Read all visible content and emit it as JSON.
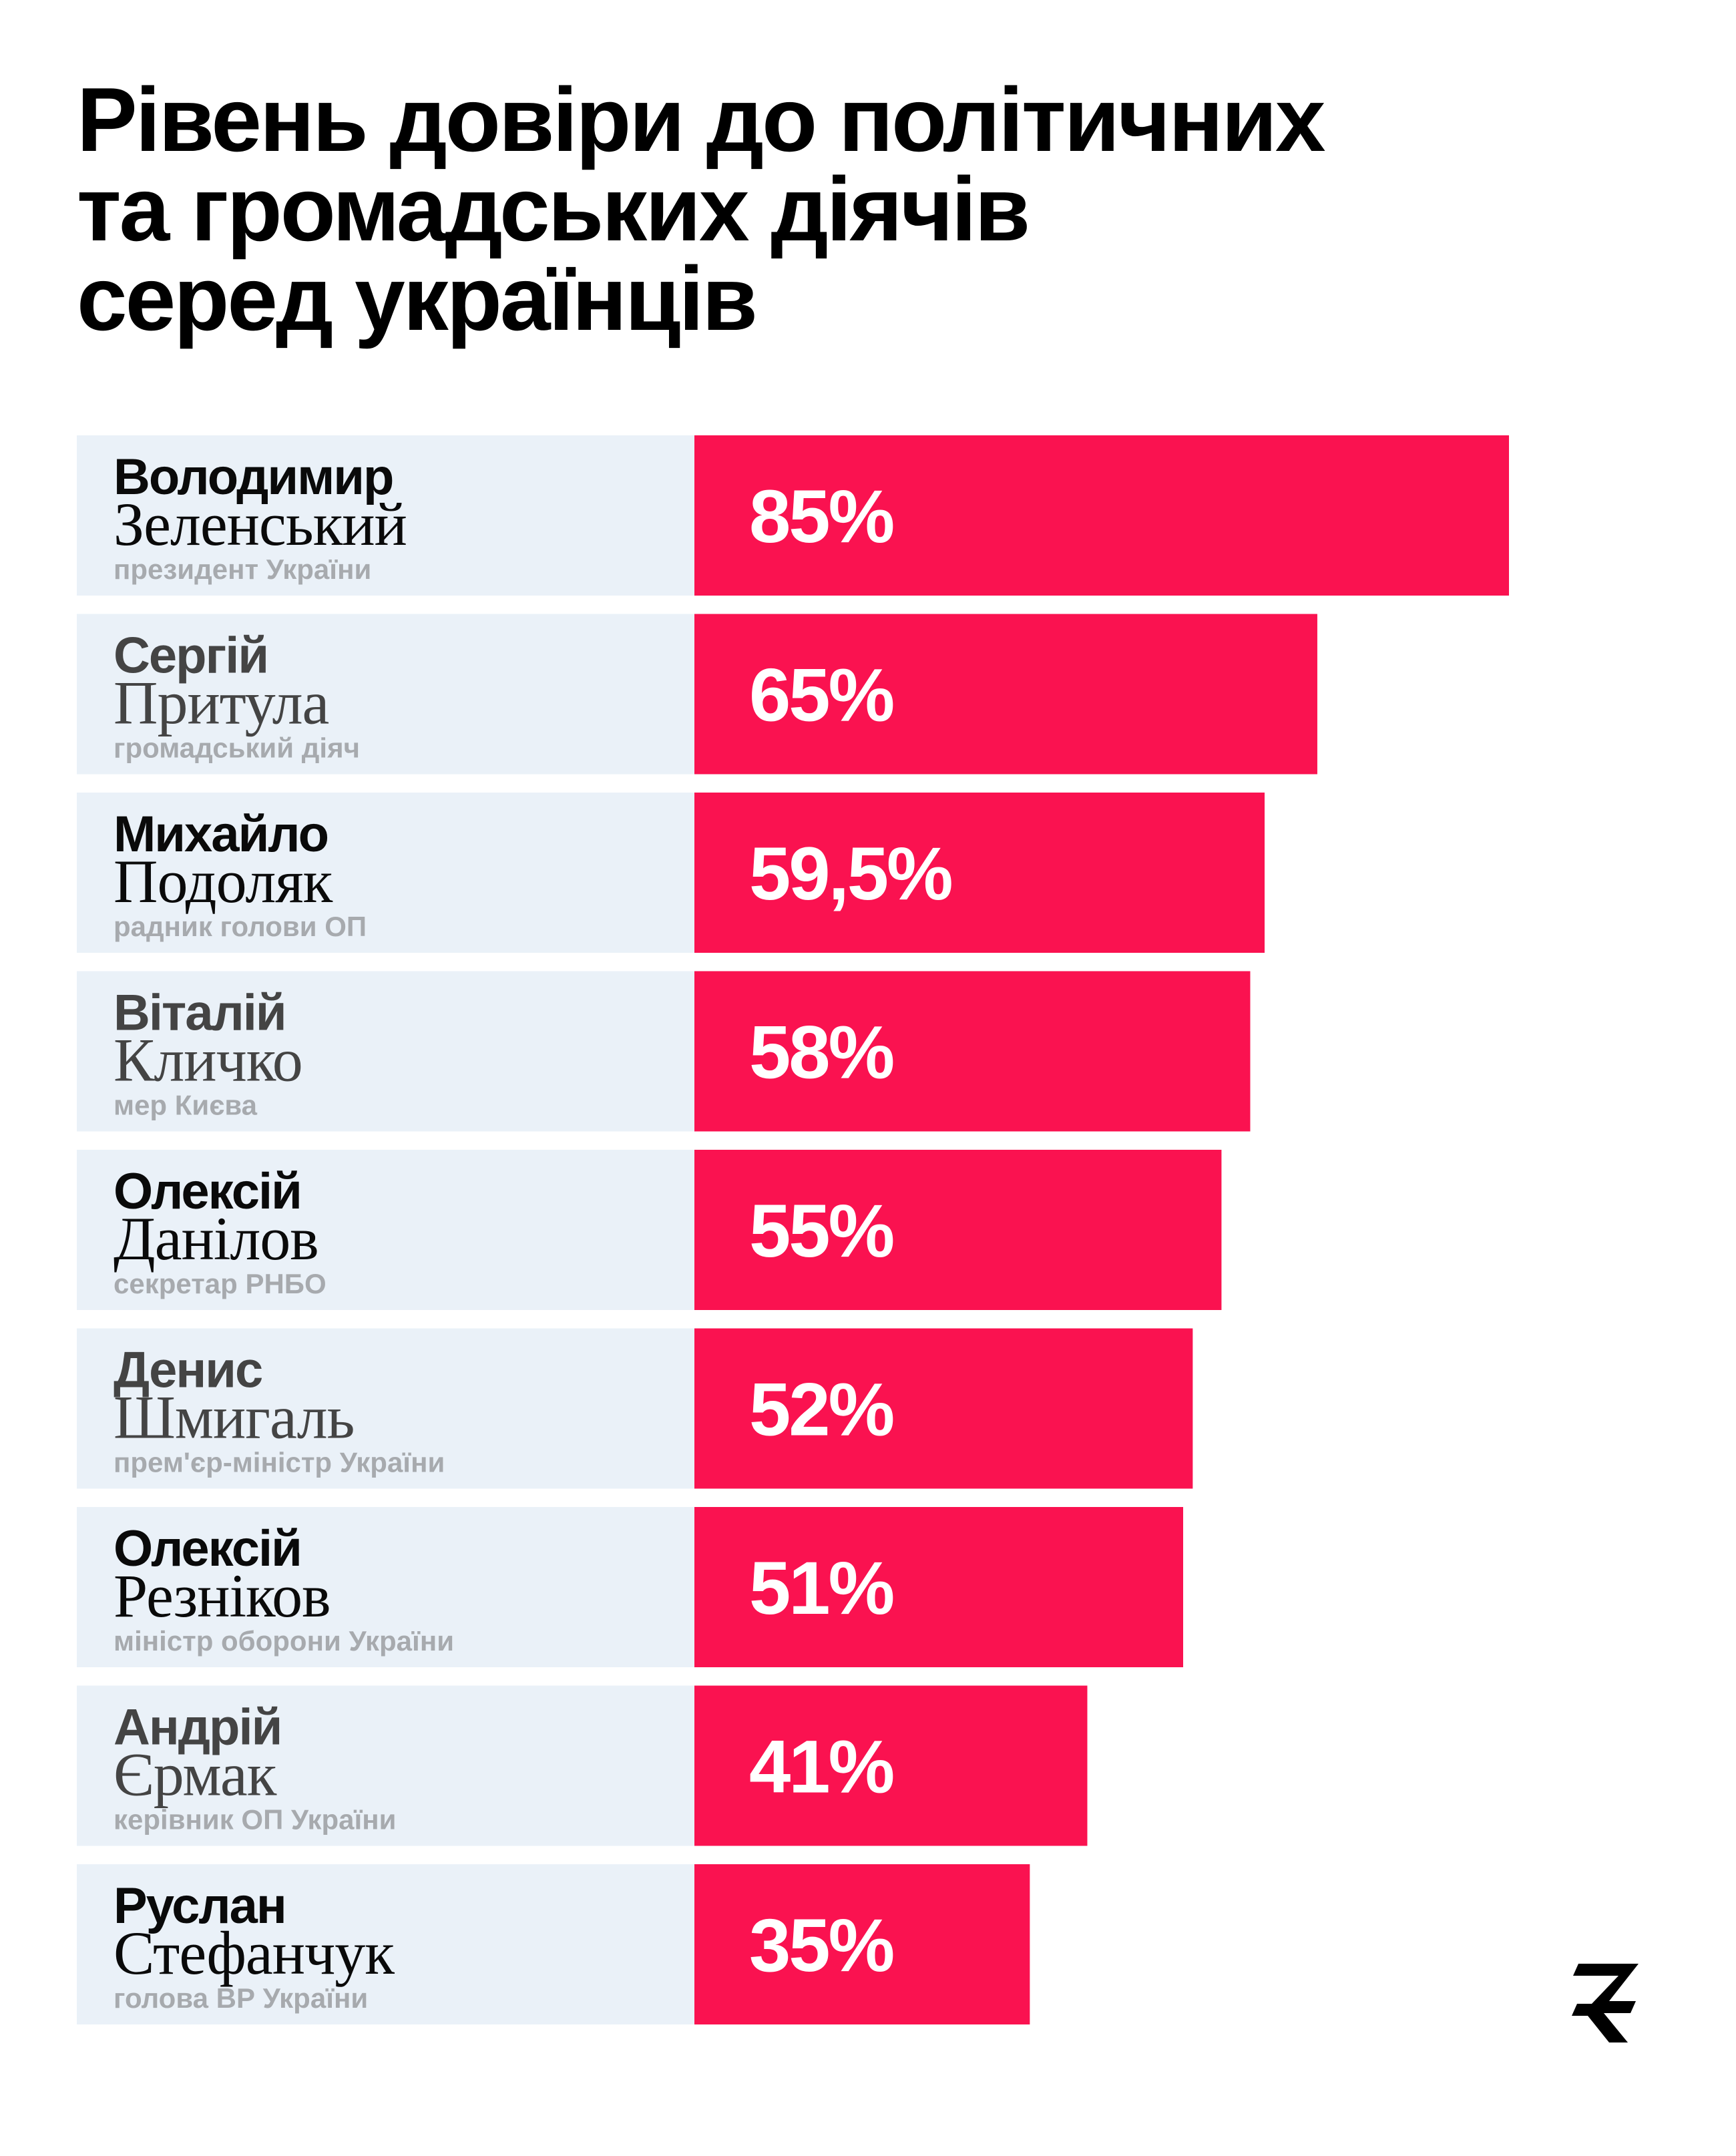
{
  "colors": {
    "bar": "#fa1250",
    "row_background": "#eaf1f8",
    "name_dark": "#0a0a0a",
    "name_grey": "#444444",
    "role_text": "#a7aaae"
  },
  "chart_data": {
    "type": "bar",
    "orientation": "horizontal",
    "title": "Рівень довіри до політичних та громадських діячів серед українців",
    "title_lines": [
      "Рівень довіри до політичних",
      "та громадських діячів",
      "серед українців"
    ],
    "xlabel": "",
    "ylabel": "",
    "xlim": [
      0,
      100
    ],
    "grid": false,
    "legend": "none",
    "categories": [
      "Володимир Зеленський",
      "Сергій Притула",
      "Михайло Подоляк",
      "Віталій Кличко",
      "Олексій Данілов",
      "Денис Шмигаль",
      "Олексій Резніков",
      "Андрій Єрмак",
      "Руслан Стефанчук"
    ],
    "values": [
      85,
      65,
      59.5,
      58,
      55,
      52,
      51,
      41,
      35
    ],
    "items": [
      {
        "first": "Володимир",
        "last": "Зеленський",
        "role": "президент України",
        "value": 85,
        "label": "85%",
        "name_color": "#0a0a0a"
      },
      {
        "first": "Сергій",
        "last": "Притула",
        "role": "громадський діяч",
        "value": 65,
        "label": "65%",
        "name_color": "#444444"
      },
      {
        "first": "Михайло",
        "last": "Подоляк",
        "role": "радник голови ОП",
        "value": 59.5,
        "label": "59,5%",
        "name_color": "#0a0a0a"
      },
      {
        "first": "Віталій",
        "last": "Кличко",
        "role": "мер Києва",
        "value": 58,
        "label": "58%",
        "name_color": "#444444"
      },
      {
        "first": "Олексій",
        "last": "Данілов",
        "role": "секретар РНБО",
        "value": 55,
        "label": "55%",
        "name_color": "#0a0a0a"
      },
      {
        "first": "Денис",
        "last": "Шмигаль",
        "role": "прем'єр-міністр України",
        "value": 52,
        "label": "52%",
        "name_color": "#444444"
      },
      {
        "first": "Олексій",
        "last": "Резніков",
        "role": "міністр оборони України",
        "value": 51,
        "label": "51%",
        "name_color": "#0a0a0a"
      },
      {
        "first": "Андрій",
        "last": "Єрмак",
        "role": "керівник ОП України",
        "value": 41,
        "label": "41%",
        "name_color": "#444444"
      },
      {
        "first": "Руслан",
        "last": "Стефанчук",
        "role": "голова ВР України",
        "value": 35,
        "label": "35%",
        "name_color": "#0a0a0a"
      }
    ]
  },
  "logo": {
    "icon": "brand-z-logo-icon"
  }
}
